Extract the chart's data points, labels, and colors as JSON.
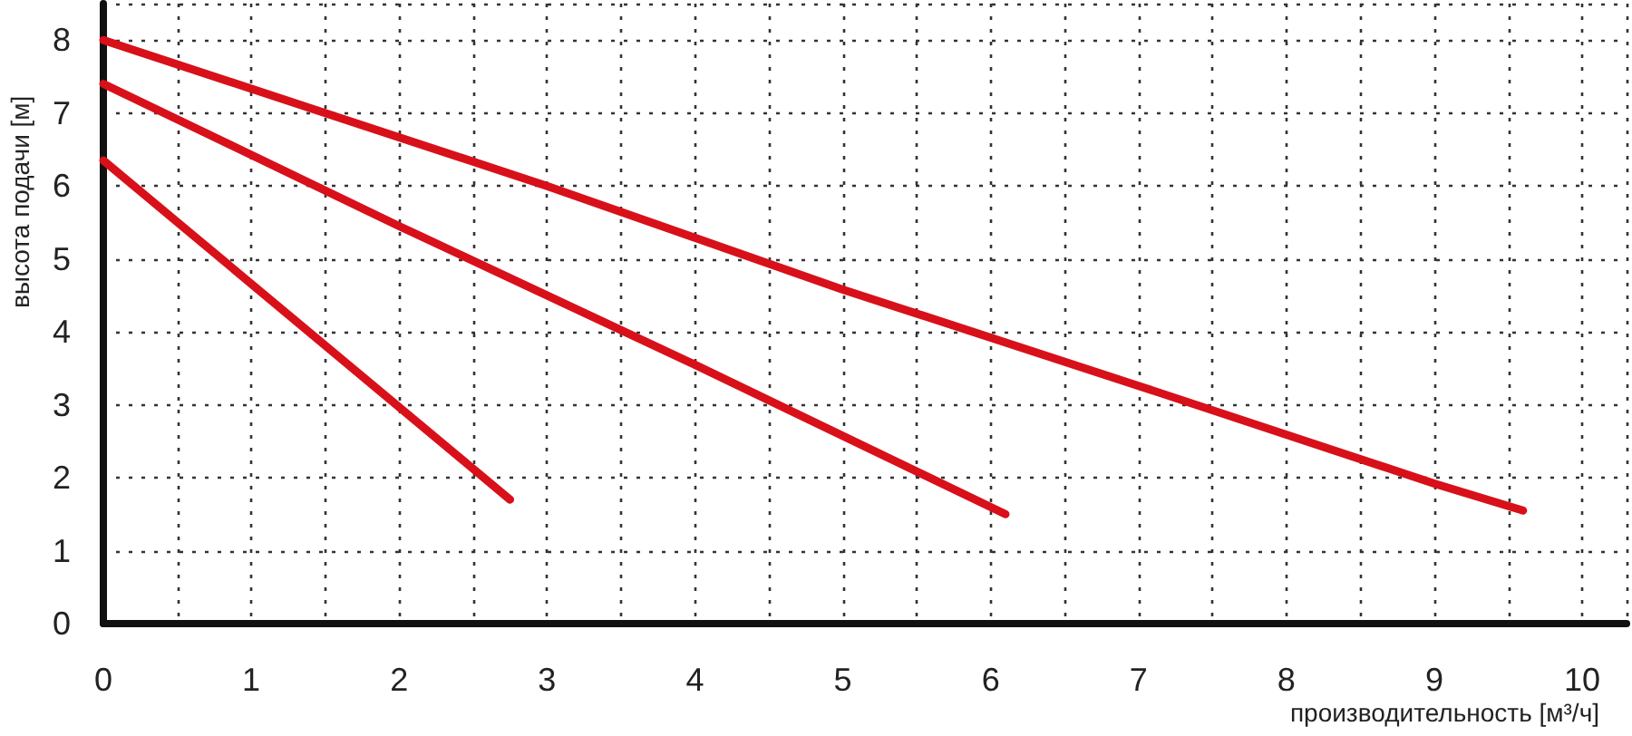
{
  "chart_data": {
    "type": "line",
    "xlabel": "производительность [м³/ч]",
    "ylabel": "высота подачи [м]",
    "xlim": [
      0,
      10.3
    ],
    "ylim": [
      0,
      8.5
    ],
    "xticks": [
      0,
      {
        "value": 0.5,
        "label": null
      },
      1,
      {
        "value": 1.5,
        "label": null
      },
      2,
      {
        "value": 2.5,
        "label": null
      },
      3,
      {
        "value": 3.5,
        "label": null
      },
      4,
      {
        "value": 4.5,
        "label": null
      },
      5,
      {
        "value": 5.5,
        "label": null
      },
      6,
      {
        "value": 6.5,
        "label": null
      },
      7,
      {
        "value": 7.5,
        "label": null
      },
      8,
      {
        "value": 8.5,
        "label": null
      },
      9,
      {
        "value": 9.5,
        "label": null
      },
      10
    ],
    "yticks": [
      0,
      1,
      2,
      3,
      4,
      5,
      6,
      7,
      8
    ],
    "grid": true,
    "marker": "none",
    "line_style": "solid",
    "series": [
      {
        "color": "#d8101a",
        "x": [
          0,
          2.75
        ],
        "values": [
          6.35,
          1.7
        ]
      },
      {
        "color": "#d8101a",
        "x": [
          0,
          2,
          4,
          6.1
        ],
        "values": [
          7.4,
          5.45,
          3.55,
          1.5
        ]
      },
      {
        "color": "#d8101a",
        "x": [
          0,
          1.5,
          3,
          5,
          7,
          9,
          9.6
        ],
        "values": [
          8.0,
          7.0,
          6.0,
          4.58,
          3.26,
          1.92,
          1.55
        ]
      }
    ]
  }
}
